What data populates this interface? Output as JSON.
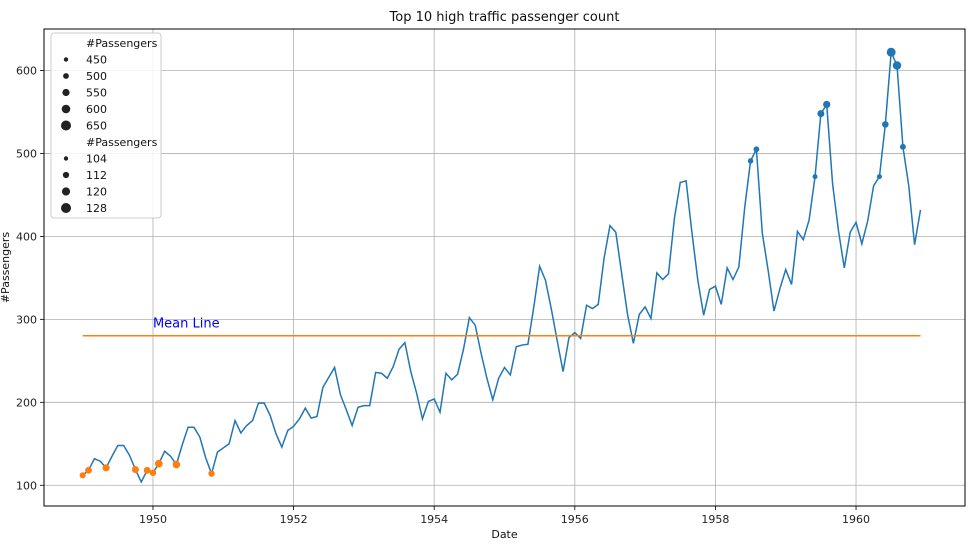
{
  "chart_data": {
    "type": "line",
    "title": "Top 10 high traffic passenger count",
    "xlabel": "Date",
    "ylabel": "#Passengers",
    "xlim": [
      1948.45,
      1961.55
    ],
    "ylim": [
      75,
      650
    ],
    "grid": true,
    "xticks": [
      1950,
      1952,
      1954,
      1956,
      1958,
      1960
    ],
    "yticks": [
      100,
      200,
      300,
      400,
      500,
      600
    ],
    "series": [
      {
        "kind": "line",
        "color": "#1f77b4",
        "x": [
          1949.0,
          1949.083,
          1949.167,
          1949.25,
          1949.333,
          1949.417,
          1949.5,
          1949.583,
          1949.667,
          1949.75,
          1949.833,
          1949.917,
          1950.0,
          1950.083,
          1950.167,
          1950.25,
          1950.333,
          1950.417,
          1950.5,
          1950.583,
          1950.667,
          1950.75,
          1950.833,
          1950.917,
          1951.0,
          1951.083,
          1951.167,
          1951.25,
          1951.333,
          1951.417,
          1951.5,
          1951.583,
          1951.667,
          1951.75,
          1951.833,
          1951.917,
          1952.0,
          1952.083,
          1952.167,
          1952.25,
          1952.333,
          1952.417,
          1952.5,
          1952.583,
          1952.667,
          1952.75,
          1952.833,
          1952.917,
          1953.0,
          1953.083,
          1953.167,
          1953.25,
          1953.333,
          1953.417,
          1953.5,
          1953.583,
          1953.667,
          1953.75,
          1953.833,
          1953.917,
          1954.0,
          1954.083,
          1954.167,
          1954.25,
          1954.333,
          1954.417,
          1954.5,
          1954.583,
          1954.667,
          1954.75,
          1954.833,
          1954.917,
          1955.0,
          1955.083,
          1955.167,
          1955.25,
          1955.333,
          1955.417,
          1955.5,
          1955.583,
          1955.667,
          1955.75,
          1955.833,
          1955.917,
          1956.0,
          1956.083,
          1956.167,
          1956.25,
          1956.333,
          1956.417,
          1956.5,
          1956.583,
          1956.667,
          1956.75,
          1956.833,
          1956.917,
          1957.0,
          1957.083,
          1957.167,
          1957.25,
          1957.333,
          1957.417,
          1957.5,
          1957.583,
          1957.667,
          1957.75,
          1957.833,
          1957.917,
          1958.0,
          1958.083,
          1958.167,
          1958.25,
          1958.333,
          1958.417,
          1958.5,
          1958.583,
          1958.667,
          1958.75,
          1958.833,
          1958.917,
          1959.0,
          1959.083,
          1959.167,
          1959.25,
          1959.333,
          1959.417,
          1959.5,
          1959.583,
          1959.667,
          1959.75,
          1959.833,
          1959.917,
          1960.0,
          1960.083,
          1960.167,
          1960.25,
          1960.333,
          1960.417,
          1960.5,
          1960.583,
          1960.667,
          1960.75,
          1960.833,
          1960.917
        ],
        "y": [
          112,
          118,
          132,
          129,
          121,
          135,
          148,
          148,
          136,
          119,
          104,
          118,
          115,
          126,
          141,
          135,
          125,
          149,
          170,
          170,
          158,
          133,
          114,
          140,
          145,
          150,
          178,
          163,
          172,
          178,
          199,
          199,
          184,
          162,
          146,
          166,
          171,
          180,
          193,
          181,
          183,
          218,
          230,
          242,
          209,
          191,
          172,
          194,
          196,
          196,
          236,
          235,
          229,
          243,
          264,
          272,
          237,
          211,
          180,
          201,
          204,
          188,
          235,
          227,
          234,
          264,
          302,
          293,
          259,
          229,
          203,
          229,
          242,
          233,
          267,
          269,
          270,
          315,
          364,
          347,
          312,
          274,
          237,
          278,
          284,
          277,
          317,
          313,
          318,
          374,
          413,
          405,
          355,
          306,
          271,
          306,
          315,
          301,
          356,
          348,
          355,
          422,
          465,
          467,
          404,
          347,
          305,
          336,
          340,
          318,
          362,
          348,
          363,
          435,
          491,
          505,
          404,
          359,
          310,
          337,
          360,
          342,
          406,
          396,
          420,
          472,
          548,
          559,
          463,
          407,
          362,
          405,
          417,
          391,
          419,
          461,
          472,
          535,
          622,
          606,
          508,
          461,
          390,
          432
        ]
      },
      {
        "kind": "line",
        "color": "#ff7f0e",
        "x": [
          1949.0,
          1960.917
        ],
        "y": [
          280.3,
          280.3
        ]
      },
      {
        "kind": "scatter",
        "color": "#1f77b4",
        "x": [
          1960.5,
          1960.583,
          1959.583,
          1959.5,
          1960.417,
          1960.667,
          1958.583,
          1958.5,
          1959.417,
          1960.333
        ],
        "y": [
          622,
          606,
          559,
          548,
          535,
          508,
          505,
          491,
          472,
          472
        ]
      },
      {
        "kind": "scatter",
        "color": "#ff7f0e",
        "x": [
          1949.0,
          1949.083,
          1949.333,
          1949.75,
          1949.917,
          1950.0,
          1950.083,
          1950.333,
          1950.833
        ],
        "y": [
          112,
          118,
          121,
          119,
          118,
          115,
          126,
          125,
          114
        ]
      }
    ],
    "annotations": [
      {
        "text": "Mean Line",
        "x": 1950.0,
        "y": 290
      }
    ],
    "legend": {
      "placement": "top-left",
      "groups": [
        {
          "title": "#Passengers",
          "entries": [
            {
              "label": "450",
              "value": 450
            },
            {
              "label": "500",
              "value": 500
            },
            {
              "label": "550",
              "value": 550
            },
            {
              "label": "600",
              "value": 600
            },
            {
              "label": "650",
              "value": 650
            }
          ]
        },
        {
          "title": "#Passengers",
          "entries": [
            {
              "label": "104",
              "value": 104
            },
            {
              "label": "112",
              "value": 112
            },
            {
              "label": "120",
              "value": 120
            },
            {
              "label": "128",
              "value": 128
            }
          ]
        }
      ]
    }
  }
}
